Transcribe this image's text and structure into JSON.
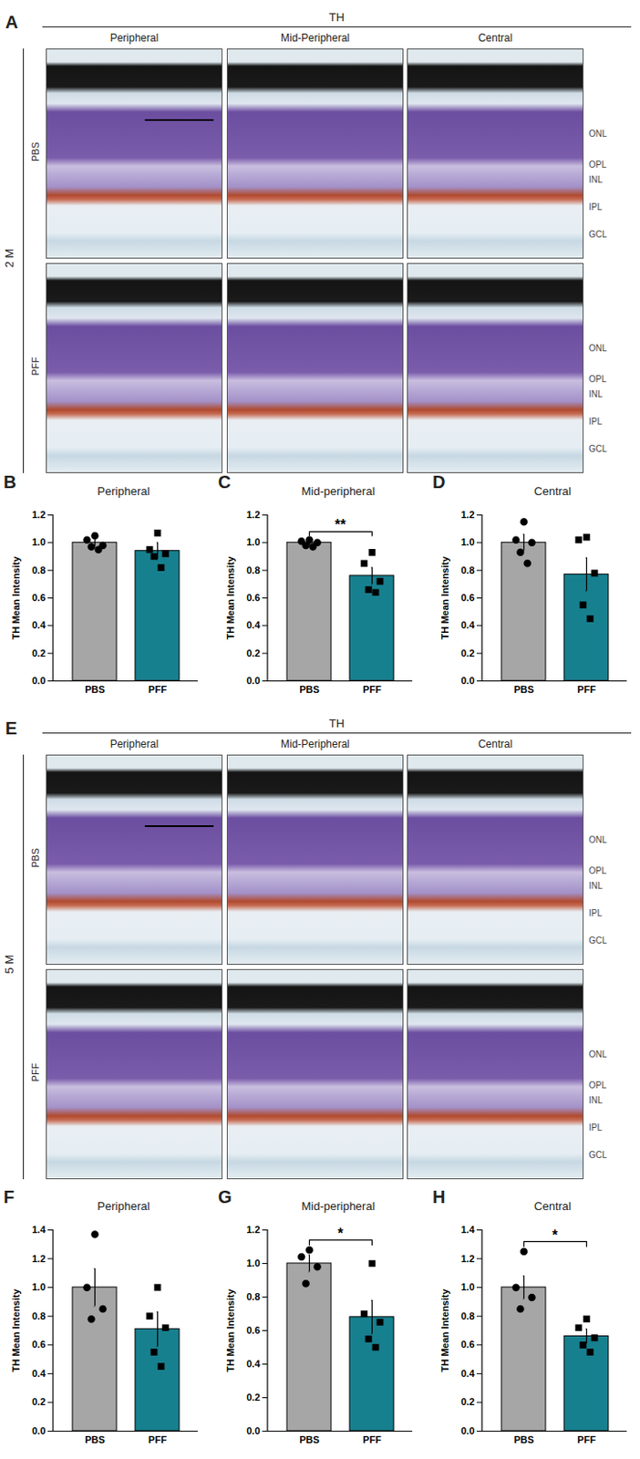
{
  "image_panels": [
    {
      "panel": "A",
      "stain": "TH",
      "timepoint": "2 M",
      "columns": [
        "Peripheral",
        "Mid-Peripheral",
        "Central"
      ],
      "rows": [
        "PBS",
        "PFF"
      ],
      "layers": [
        "ONL",
        "OPL",
        "INL",
        "IPL",
        "GCL"
      ]
    },
    {
      "panel": "E",
      "stain": "TH",
      "timepoint": "5 M",
      "columns": [
        "Peripheral",
        "Mid-Peripheral",
        "Central"
      ],
      "rows": [
        "PBS",
        "PFF"
      ],
      "layers": [
        "ONL",
        "OPL",
        "INL",
        "IPL",
        "GCL"
      ]
    }
  ],
  "chart_data": [
    {
      "panel": "B",
      "type": "bar",
      "title": "Peripheral",
      "y_label": "TH Mean Intensity",
      "categories": [
        "PBS",
        "PFF"
      ],
      "values": [
        1.0,
        0.94
      ],
      "errors": [
        0.03,
        0.06
      ],
      "colors": [
        "#a6a6a6",
        "#17808f"
      ],
      "points": [
        {
          "marker": "circle",
          "values": [
            1.05,
            1.02,
            0.98,
            0.97,
            0.95
          ]
        },
        {
          "marker": "square",
          "values": [
            1.07,
            0.95,
            0.92,
            0.9,
            0.82
          ]
        }
      ],
      "ylim": [
        0,
        1.2
      ],
      "yticks": [
        {
          "value": 0,
          "label": "0.0"
        },
        {
          "value": 0.2,
          "label": "0.2"
        },
        {
          "value": 0.4,
          "label": "0.4"
        },
        {
          "value": 0.6,
          "label": "0.6"
        },
        {
          "value": 0.8,
          "label": "0.8"
        },
        {
          "value": 1.0,
          "label": "1.0"
        },
        {
          "value": 1.2,
          "label": "1.2"
        }
      ]
    },
    {
      "panel": "C",
      "type": "bar",
      "title": "Mid-peripheral",
      "y_label": "TH Mean Intensity",
      "categories": [
        "PBS",
        "PFF"
      ],
      "values": [
        1.0,
        0.76
      ],
      "errors": [
        0.02,
        0.06
      ],
      "colors": [
        "#a6a6a6",
        "#17808f"
      ],
      "points": [
        {
          "marker": "circle",
          "values": [
            1.02,
            1.01,
            1.0,
            0.98,
            0.97
          ]
        },
        {
          "marker": "square",
          "values": [
            0.93,
            0.85,
            0.72,
            0.66,
            0.64
          ]
        }
      ],
      "significance": "**",
      "ylim": [
        0,
        1.2
      ],
      "yticks": [
        {
          "value": 0,
          "label": "0.0"
        },
        {
          "value": 0.2,
          "label": "0.2"
        },
        {
          "value": 0.4,
          "label": "0.4"
        },
        {
          "value": 0.6,
          "label": "0.6"
        },
        {
          "value": 0.8,
          "label": "0.8"
        },
        {
          "value": 1.0,
          "label": "1.0"
        },
        {
          "value": 1.2,
          "label": "1.2"
        }
      ]
    },
    {
      "panel": "D",
      "type": "bar",
      "title": "Central",
      "y_label": "TH Mean Intensity",
      "categories": [
        "PBS",
        "PFF"
      ],
      "values": [
        1.0,
        0.77
      ],
      "errors": [
        0.06,
        0.12
      ],
      "colors": [
        "#a6a6a6",
        "#17808f"
      ],
      "points": [
        {
          "marker": "circle",
          "values": [
            1.15,
            1.02,
            1.0,
            0.93,
            0.85
          ]
        },
        {
          "marker": "square",
          "values": [
            1.04,
            1.02,
            0.78,
            0.55,
            0.45
          ]
        }
      ],
      "ylim": [
        0,
        1.2
      ],
      "yticks": [
        {
          "value": 0,
          "label": "0.0"
        },
        {
          "value": 0.2,
          "label": "0.2"
        },
        {
          "value": 0.4,
          "label": "0.4"
        },
        {
          "value": 0.6,
          "label": "0.6"
        },
        {
          "value": 0.8,
          "label": "0.8"
        },
        {
          "value": 1.0,
          "label": "1.0"
        },
        {
          "value": 1.2,
          "label": "1.2"
        }
      ]
    },
    {
      "panel": "F",
      "type": "bar",
      "title": "Peripheral",
      "y_label": "TH Mean Intensity",
      "categories": [
        "PBS",
        "PFF"
      ],
      "values": [
        1.0,
        0.71
      ],
      "errors": [
        0.13,
        0.12
      ],
      "colors": [
        "#a6a6a6",
        "#17808f"
      ],
      "points": [
        {
          "marker": "circle",
          "values": [
            1.37,
            1.0,
            0.85,
            0.78
          ]
        },
        {
          "marker": "square",
          "values": [
            1.0,
            0.8,
            0.72,
            0.55,
            0.45
          ]
        }
      ],
      "ylim": [
        0,
        1.4
      ],
      "yticks": [
        {
          "value": 0,
          "label": "0.0"
        },
        {
          "value": 0.2,
          "label": "0.2"
        },
        {
          "value": 0.4,
          "label": "0.4"
        },
        {
          "value": 0.6,
          "label": "0.6"
        },
        {
          "value": 0.8,
          "label": "0.8"
        },
        {
          "value": 1.0,
          "label": "1.0"
        },
        {
          "value": 1.2,
          "label": "1.2"
        },
        {
          "value": 1.4,
          "label": "1.4"
        }
      ]
    },
    {
      "panel": "G",
      "type": "bar",
      "title": "Mid-peripheral",
      "y_label": "TH Mean Intensity",
      "categories": [
        "PBS",
        "PFF"
      ],
      "values": [
        1.0,
        0.68
      ],
      "errors": [
        0.05,
        0.1
      ],
      "colors": [
        "#a6a6a6",
        "#17808f"
      ],
      "points": [
        {
          "marker": "circle",
          "values": [
            1.08,
            1.04,
            0.98,
            0.88
          ]
        },
        {
          "marker": "square",
          "values": [
            1.0,
            0.7,
            0.65,
            0.55,
            0.5
          ]
        }
      ],
      "significance": "*",
      "ylim": [
        0,
        1.2
      ],
      "yticks": [
        {
          "value": 0,
          "label": "0.0"
        },
        {
          "value": 0.2,
          "label": "0.2"
        },
        {
          "value": 0.4,
          "label": "0.4"
        },
        {
          "value": 0.6,
          "label": "0.6"
        },
        {
          "value": 0.8,
          "label": "0.8"
        },
        {
          "value": 1.0,
          "label": "1.0"
        },
        {
          "value": 1.2,
          "label": "1.2"
        }
      ]
    },
    {
      "panel": "H",
      "type": "bar",
      "title": "Central",
      "y_label": "TH Mean Intensity",
      "categories": [
        "PBS",
        "PFF"
      ],
      "values": [
        1.0,
        0.66
      ],
      "errors": [
        0.08,
        0.05
      ],
      "colors": [
        "#a6a6a6",
        "#17808f"
      ],
      "points": [
        {
          "marker": "circle",
          "values": [
            1.25,
            1.0,
            0.93,
            0.85
          ]
        },
        {
          "marker": "square",
          "values": [
            0.78,
            0.72,
            0.65,
            0.6,
            0.55
          ]
        }
      ],
      "significance": "*",
      "ylim": [
        0,
        1.4
      ],
      "yticks": [
        {
          "value": 0,
          "label": "0.0"
        },
        {
          "value": 0.2,
          "label": "0.2"
        },
        {
          "value": 0.4,
          "label": "0.4"
        },
        {
          "value": 0.6,
          "label": "0.6"
        },
        {
          "value": 0.8,
          "label": "0.8"
        },
        {
          "value": 1.0,
          "label": "1.0"
        },
        {
          "value": 1.2,
          "label": "1.2"
        },
        {
          "value": 1.4,
          "label": "1.4"
        }
      ]
    }
  ]
}
